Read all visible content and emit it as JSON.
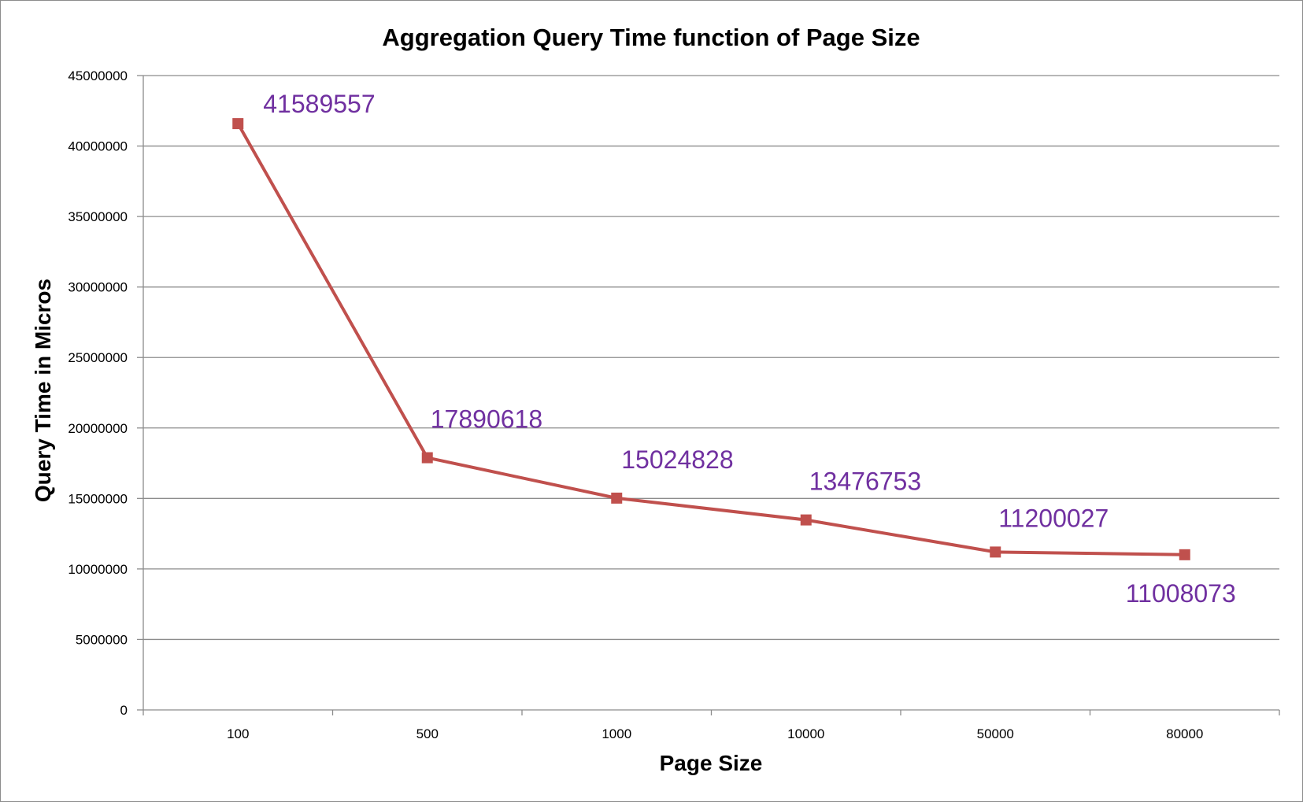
{
  "chart_data": {
    "type": "line",
    "title": "Aggregation Query Time function of Page Size",
    "xlabel": "Page Size",
    "ylabel": "Query Time in Micros",
    "categories": [
      "100",
      "500",
      "1000",
      "10000",
      "50000",
      "80000"
    ],
    "series": [
      {
        "values": [
          41589557,
          17890618,
          15024828,
          13476753,
          11200027,
          11008073
        ]
      }
    ],
    "data_labels": [
      "41589557",
      "17890618",
      "15024828",
      "13476753",
      "11200027",
      "11008073"
    ],
    "y_ticks": [
      "0",
      "5000000",
      "10000000",
      "15000000",
      "20000000",
      "25000000",
      "30000000",
      "35000000",
      "40000000",
      "45000000"
    ],
    "ylim": [
      0,
      45000000
    ],
    "grid": true,
    "legend": "none",
    "colors": {
      "line": "#c0504d",
      "marker": "#c0504d",
      "label": "#7030a0",
      "grid": "#8c8c8c"
    }
  }
}
